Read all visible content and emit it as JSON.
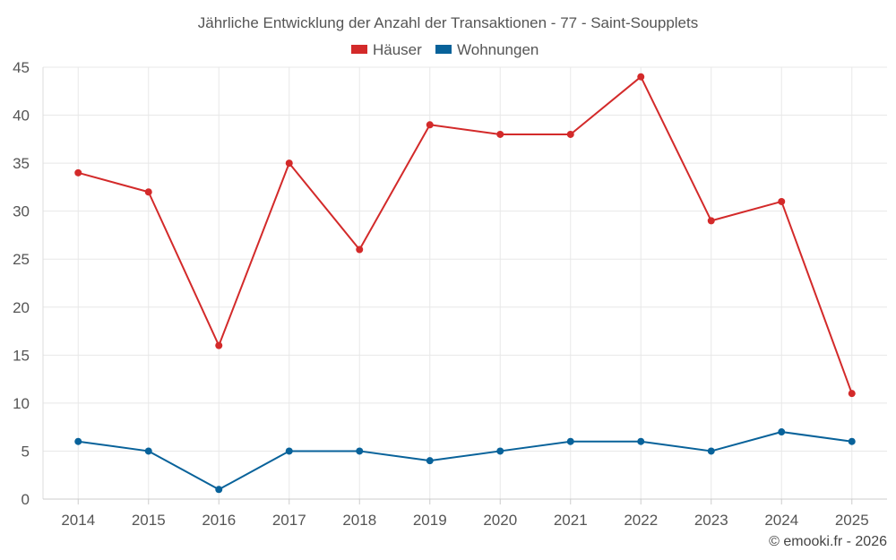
{
  "chart_data": {
    "type": "line",
    "title": "Jährliche Entwicklung der Anzahl der Transaktionen - 77 - Saint-Soupplets",
    "categories": [
      "2014",
      "2015",
      "2016",
      "2017",
      "2018",
      "2019",
      "2020",
      "2021",
      "2022",
      "2023",
      "2024",
      "2025"
    ],
    "series": [
      {
        "name": "Häuser",
        "color": "#d32a2a",
        "values": [
          34,
          32,
          16,
          35,
          26,
          39,
          38,
          38,
          44,
          29,
          31,
          11
        ]
      },
      {
        "name": "Wohnungen",
        "color": "#08629a",
        "values": [
          6,
          5,
          1,
          5,
          5,
          4,
          5,
          6,
          6,
          5,
          7,
          6
        ]
      }
    ],
    "ylim": [
      0,
      45
    ],
    "yticks": [
      0,
      5,
      10,
      15,
      20,
      25,
      30,
      35,
      40,
      45
    ],
    "grid": true,
    "legend_position": "top-center",
    "xlabel": "",
    "ylabel": ""
  },
  "credit": "© emooki.fr - 2026"
}
